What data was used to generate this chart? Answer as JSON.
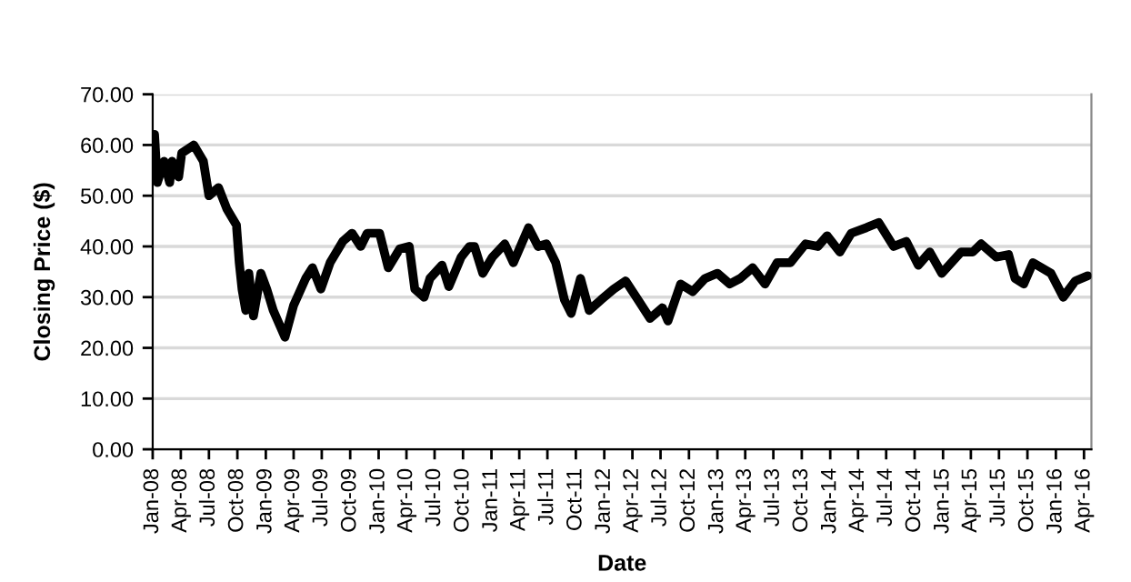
{
  "chart_data": {
    "type": "line",
    "xlabel": "Date",
    "ylabel": "Closing Price ($)",
    "x": [
      "2008-01-07",
      "2008-01-16",
      "2008-02-07",
      "2008-02-25",
      "2008-03-04",
      "2008-03-25",
      "2008-04-04",
      "2008-05-13",
      "2008-06-13",
      "2008-07-01",
      "2008-08-01",
      "2008-08-28",
      "2008-09-28",
      "2008-10-07",
      "2008-10-16",
      "2008-10-28",
      "2008-11-07",
      "2008-11-22",
      "2008-12-16",
      "2009-01-04",
      "2009-01-25",
      "2009-03-04",
      "2009-04-01",
      "2009-05-10",
      "2009-06-01",
      "2009-06-28",
      "2009-07-28",
      "2009-09-07",
      "2009-10-07",
      "2009-11-04",
      "2009-11-25",
      "2010-01-04",
      "2010-02-01",
      "2010-03-10",
      "2010-04-10",
      "2010-04-28",
      "2010-05-28",
      "2010-06-16",
      "2010-07-25",
      "2010-08-16",
      "2010-09-25",
      "2010-10-22",
      "2010-11-07",
      "2010-12-04",
      "2011-01-04",
      "2011-02-13",
      "2011-03-13",
      "2011-05-01",
      "2011-06-01",
      "2011-06-28",
      "2011-07-28",
      "2011-08-25",
      "2011-09-16",
      "2011-10-16",
      "2011-11-13",
      "2011-12-22",
      "2012-02-01",
      "2012-03-10",
      "2012-04-19",
      "2012-05-28",
      "2012-07-07",
      "2012-07-25",
      "2012-09-04",
      "2012-10-13",
      "2012-11-22",
      "2013-01-01",
      "2013-02-10",
      "2013-03-16",
      "2013-04-25",
      "2013-06-04",
      "2013-07-13",
      "2013-08-25",
      "2013-10-13",
      "2013-11-22",
      "2013-12-22",
      "2014-02-01",
      "2014-03-10",
      "2014-04-28",
      "2014-06-07",
      "2014-07-25",
      "2014-09-04",
      "2014-10-13",
      "2014-11-19",
      "2014-12-28",
      "2015-02-28",
      "2015-04-07",
      "2015-05-04",
      "2015-06-22",
      "2015-08-01",
      "2015-08-22",
      "2015-09-19",
      "2015-10-19",
      "2015-12-16",
      "2016-01-25",
      "2016-03-04",
      "2016-04-13"
    ],
    "series": [
      {
        "color": "#000000",
        "values": [
          62.1,
          52.6,
          56.8,
          52.6,
          56.8,
          53.7,
          58.4,
          60,
          56.8,
          50,
          51.6,
          47.4,
          44.2,
          36.8,
          31.6,
          27.4,
          34.7,
          26.3,
          34.7,
          31.6,
          27.4,
          22.1,
          28.4,
          33.7,
          35.8,
          31.6,
          36.8,
          41,
          42.6,
          40,
          42.6,
          42.6,
          35.8,
          39.5,
          40,
          31.6,
          30,
          33.7,
          36.3,
          32.1,
          37.9,
          40,
          40,
          34.7,
          37.9,
          40.5,
          36.8,
          43.7,
          40,
          40.5,
          36.8,
          29.5,
          26.8,
          33.7,
          27.4,
          29.5,
          31.6,
          33.2,
          29.5,
          25.8,
          27.9,
          25.3,
          32.6,
          31.1,
          33.7,
          34.7,
          32.6,
          33.7,
          35.8,
          32.6,
          36.8,
          36.8,
          40.5,
          40,
          42.1,
          38.9,
          42.6,
          43.7,
          44.7,
          40,
          41,
          36.3,
          38.9,
          34.7,
          38.9,
          38.9,
          40.5,
          37.9,
          38.4,
          33.7,
          32.6,
          36.8,
          34.7,
          30,
          33.2,
          34.2
        ]
      }
    ],
    "xlim": [
      "2008-01-01",
      "2016-04-25"
    ],
    "xticks": [
      {
        "value": "2008-01-01",
        "label": "Jan-08"
      },
      {
        "value": "2008-04-01",
        "label": "Apr-08"
      },
      {
        "value": "2008-07-01",
        "label": "Jul-08"
      },
      {
        "value": "2008-10-01",
        "label": "Oct-08"
      },
      {
        "value": "2009-01-01",
        "label": "Jan-09"
      },
      {
        "value": "2009-04-01",
        "label": "Apr-09"
      },
      {
        "value": "2009-07-01",
        "label": "Jul-09"
      },
      {
        "value": "2009-10-01",
        "label": "Oct-09"
      },
      {
        "value": "2010-01-01",
        "label": "Jan-10"
      },
      {
        "value": "2010-04-01",
        "label": "Apr-10"
      },
      {
        "value": "2010-07-01",
        "label": "Jul-10"
      },
      {
        "value": "2010-10-01",
        "label": "Oct-10"
      },
      {
        "value": "2011-01-01",
        "label": "Jan-11"
      },
      {
        "value": "2011-04-01",
        "label": "Apr-11"
      },
      {
        "value": "2011-07-01",
        "label": "Jul-11"
      },
      {
        "value": "2011-10-01",
        "label": "Oct-11"
      },
      {
        "value": "2012-01-01",
        "label": "Jan-12"
      },
      {
        "value": "2012-04-01",
        "label": "Apr-12"
      },
      {
        "value": "2012-07-01",
        "label": "Jul-12"
      },
      {
        "value": "2012-10-01",
        "label": "Oct-12"
      },
      {
        "value": "2013-01-01",
        "label": "Jan-13"
      },
      {
        "value": "2013-04-01",
        "label": "Apr-13"
      },
      {
        "value": "2013-07-01",
        "label": "Jul-13"
      },
      {
        "value": "2013-10-01",
        "label": "Oct-13"
      },
      {
        "value": "2014-01-01",
        "label": "Jan-14"
      },
      {
        "value": "2014-04-01",
        "label": "Apr-14"
      },
      {
        "value": "2014-07-01",
        "label": "Jul-14"
      },
      {
        "value": "2014-10-01",
        "label": "Oct-14"
      },
      {
        "value": "2015-01-01",
        "label": "Jan-15"
      },
      {
        "value": "2015-04-01",
        "label": "Apr-15"
      },
      {
        "value": "2015-07-01",
        "label": "Jul-15"
      },
      {
        "value": "2015-10-01",
        "label": "Oct-15"
      },
      {
        "value": "2016-01-01",
        "label": "Jan-16"
      },
      {
        "value": "2016-04-01",
        "label": "Apr-16"
      }
    ],
    "ylim": [
      0,
      70
    ],
    "yticks": [
      {
        "value": 0,
        "label": "0.00"
      },
      {
        "value": 10,
        "label": "10.00"
      },
      {
        "value": 20,
        "label": "20.00"
      },
      {
        "value": 30,
        "label": "30.00"
      },
      {
        "value": 40,
        "label": "40.00"
      },
      {
        "value": 50,
        "label": "50.00"
      },
      {
        "value": 60,
        "label": "60.00"
      },
      {
        "value": 70,
        "label": "70.00"
      }
    ],
    "grid": "y",
    "marker": "none",
    "line_style": "solid"
  }
}
